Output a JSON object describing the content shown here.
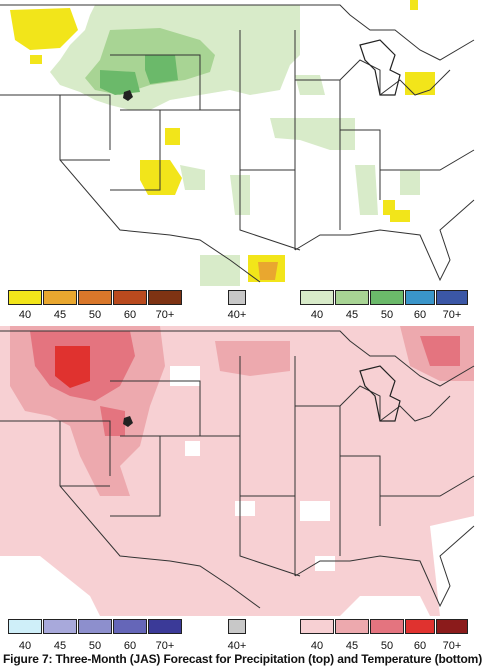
{
  "precipitation_legend": {
    "below": {
      "colors": [
        "#f2e51a",
        "#e9a72f",
        "#d9772a",
        "#b94a1e",
        "#7e3313"
      ],
      "labels": [
        "40",
        "45",
        "50",
        "60",
        "70+"
      ]
    },
    "equal_chances": {
      "color": "#c8c8c8",
      "label": "40+"
    },
    "above": {
      "colors": [
        "#d8ebc9",
        "#a8d494",
        "#6bb96a",
        "#3a95c9",
        "#3b57a6"
      ],
      "labels": [
        "40",
        "45",
        "50",
        "60",
        "70+"
      ]
    }
  },
  "temperature_legend": {
    "below": {
      "colors": [
        "#cfeff9",
        "#a8a9db",
        "#8d8fcd",
        "#6566b8",
        "#3b3a98"
      ],
      "labels": [
        "40",
        "45",
        "50",
        "60",
        "70+"
      ]
    },
    "equal_chances": {
      "color": "#c8c8c8",
      "label": "40+"
    },
    "above": {
      "colors": [
        "#f7d0d3",
        "#eda9ae",
        "#e4747f",
        "#e0322f",
        "#8b1b1b"
      ],
      "labels": [
        "40",
        "45",
        "50",
        "60",
        "70+"
      ]
    }
  },
  "caption": "Figure 7: Three-Month (JAS) Forecast for Precipitation (top) and Temperature (bottom)"
}
